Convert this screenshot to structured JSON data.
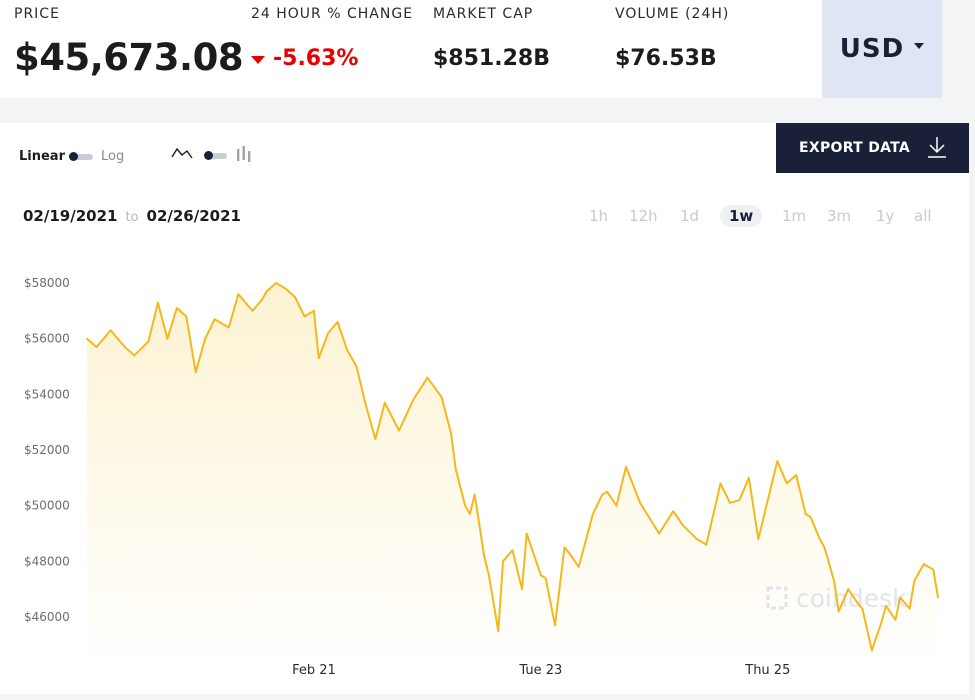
{
  "stats": {
    "price_label": "PRICE",
    "price_value": "$45,673.08",
    "change_label": "24 HOUR % CHANGE",
    "change_value": "-5.63%",
    "mcap_label": "MARKET CAP",
    "mcap_value": "$851.28B",
    "volume_label": "VOLUME (24H)",
    "volume_value": "$76.53B"
  },
  "currency": {
    "selected": "USD"
  },
  "controls": {
    "scale_linear": "Linear",
    "scale_log": "Log",
    "export_label": "EXPORT DATA"
  },
  "date_range": {
    "from": "02/19/2021",
    "to_label": "to",
    "to": "02/26/2021"
  },
  "range_tabs": [
    "1h",
    "12h",
    "1d",
    "1w",
    "1m",
    "3m",
    "1y",
    "all"
  ],
  "range_active": "1w",
  "watermark": "coindesk",
  "colors": {
    "line": "#f5b81c",
    "fill": "#fdf3d2",
    "accent": "#1a2038",
    "negative": "#e60000"
  },
  "chart_data": {
    "type": "area",
    "title": "",
    "xlabel": "",
    "ylabel": "",
    "ylim": [
      44800,
      59000
    ],
    "yticks": [
      "$58000",
      "$56000",
      "$54000",
      "$52000",
      "$50000",
      "$48000",
      "$46000"
    ],
    "ytick_values": [
      58000,
      56000,
      54000,
      52000,
      50000,
      48000,
      46000
    ],
    "xticks": [
      "Feb 21",
      "Tue 23",
      "Thu 25"
    ],
    "xtick_values": [
      "2021-02-21",
      "2021-02-23",
      "2021-02-25"
    ],
    "grid": false,
    "x_range": [
      "2021-02-19T00:00",
      "2021-02-26T12:00"
    ],
    "series": [
      {
        "x": [
          "2021-02-19T00:00",
          "2021-02-19T02:00",
          "2021-02-19T05:00",
          "2021-02-19T08:00",
          "2021-02-19T10:00",
          "2021-02-19T13:00",
          "2021-02-19T15:00",
          "2021-02-19T17:00",
          "2021-02-19T19:00",
          "2021-02-19T21:00",
          "2021-02-19T23:00",
          "2021-02-20T01:00",
          "2021-02-20T03:00",
          "2021-02-20T06:00",
          "2021-02-20T08:00",
          "2021-02-20T11:00",
          "2021-02-20T13:00",
          "2021-02-20T14:00",
          "2021-02-20T16:00",
          "2021-02-20T18:00",
          "2021-02-20T20:00",
          "2021-02-20T22:00",
          "2021-02-21T00:00",
          "2021-02-21T01:00",
          "2021-02-21T03:00",
          "2021-02-21T05:00",
          "2021-02-21T07:00",
          "2021-02-21T09:00",
          "2021-02-21T11:00",
          "2021-02-21T13:00",
          "2021-02-21T15:00",
          "2021-02-21T18:00",
          "2021-02-21T21:00",
          "2021-02-22T00:00",
          "2021-02-22T03:00",
          "2021-02-22T05:00",
          "2021-02-22T06:00",
          "2021-02-22T08:00",
          "2021-02-22T09:00",
          "2021-02-22T10:00",
          "2021-02-22T12:00",
          "2021-02-22T13:00",
          "2021-02-22T15:00",
          "2021-02-22T16:00",
          "2021-02-22T18:00",
          "2021-02-22T20:00",
          "2021-02-22T21:00",
          "2021-02-23T00:00",
          "2021-02-23T01:00",
          "2021-02-23T03:00",
          "2021-02-23T05:00",
          "2021-02-23T06:00",
          "2021-02-23T08:00",
          "2021-02-23T11:00",
          "2021-02-23T13:00",
          "2021-02-23T14:00",
          "2021-02-23T16:00",
          "2021-02-23T18:00",
          "2021-02-23T21:00",
          "2021-02-24T01:00",
          "2021-02-24T04:00",
          "2021-02-24T06:00",
          "2021-02-24T09:00",
          "2021-02-24T11:00",
          "2021-02-24T14:00",
          "2021-02-24T16:00",
          "2021-02-24T18:00",
          "2021-02-24T20:00",
          "2021-02-24T22:00",
          "2021-02-25T00:00",
          "2021-02-25T02:00",
          "2021-02-25T04:00",
          "2021-02-25T06:00",
          "2021-02-25T08:00",
          "2021-02-25T09:00",
          "2021-02-25T11:00",
          "2021-02-25T12:00",
          "2021-02-25T14:00",
          "2021-02-25T15:00",
          "2021-02-25T17:00",
          "2021-02-25T19:00",
          "2021-02-25T20:00",
          "2021-02-25T22:00",
          "2021-02-26T00:00",
          "2021-02-26T01:00",
          "2021-02-26T03:00",
          "2021-02-26T04:00",
          "2021-02-26T06:00",
          "2021-02-26T07:00",
          "2021-02-26T09:00",
          "2021-02-26T11:00",
          "2021-02-26T12:00"
        ],
        "values": [
          56000,
          55700,
          56300,
          55700,
          55400,
          55900,
          57300,
          56000,
          57100,
          56800,
          54800,
          56000,
          56700,
          56400,
          57600,
          57000,
          57400,
          57700,
          58000,
          57800,
          57500,
          56800,
          57000,
          55300,
          56200,
          56600,
          55600,
          55000,
          53600,
          52400,
          53700,
          52700,
          53800,
          54600,
          53900,
          52600,
          51300,
          50000,
          49700,
          50400,
          48200,
          47500,
          45500,
          48000,
          48400,
          47000,
          49000,
          47500,
          47400,
          45700,
          48500,
          48300,
          47800,
          49700,
          50400,
          50500,
          50000,
          51400,
          50100,
          49000,
          49800,
          49300,
          48800,
          48600,
          50800,
          50100,
          50200,
          51000,
          48800,
          50200,
          51600,
          50800,
          51100,
          49700,
          49600,
          48800,
          48500,
          47300,
          46200,
          47000,
          46500,
          46300,
          44800,
          45800,
          46400,
          45900,
          46700,
          46300,
          47300,
          47900,
          47700,
          46700
        ]
      }
    ]
  }
}
